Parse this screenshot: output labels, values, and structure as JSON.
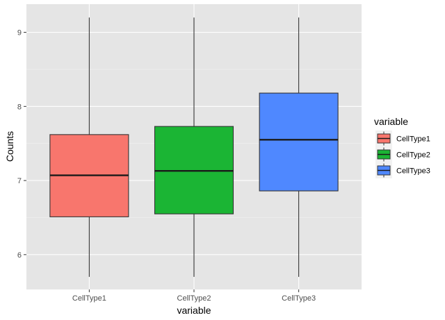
{
  "chart_data": {
    "type": "boxplot",
    "title": "",
    "xlabel": "variable",
    "ylabel": "Counts",
    "ylim": [
      5.53,
      9.38
    ],
    "y_ticks": [
      6,
      7,
      8,
      9
    ],
    "y_tick_labels": [
      "6",
      "7",
      "8",
      "9"
    ],
    "categories": [
      "CellType1",
      "CellType2",
      "CellType3"
    ],
    "series": [
      {
        "name": "CellType1",
        "color": "#F8766D",
        "whisker_low": 5.7,
        "q1": 6.51,
        "median": 7.07,
        "q3": 7.62,
        "whisker_high": 9.2
      },
      {
        "name": "CellType2",
        "color": "#1BB534",
        "whisker_low": 5.7,
        "q1": 6.55,
        "median": 7.13,
        "q3": 7.73,
        "whisker_high": 9.2
      },
      {
        "name": "CellType3",
        "color": "#4F88FF",
        "whisker_low": 5.7,
        "q1": 6.86,
        "median": 7.55,
        "q3": 8.18,
        "whisker_high": 9.2
      }
    ],
    "grid": true,
    "panel_background": "#E5E5E5",
    "legend": {
      "title": "variable",
      "placement": "right",
      "items": [
        "CellType1",
        "CellType2",
        "CellType3"
      ]
    }
  }
}
